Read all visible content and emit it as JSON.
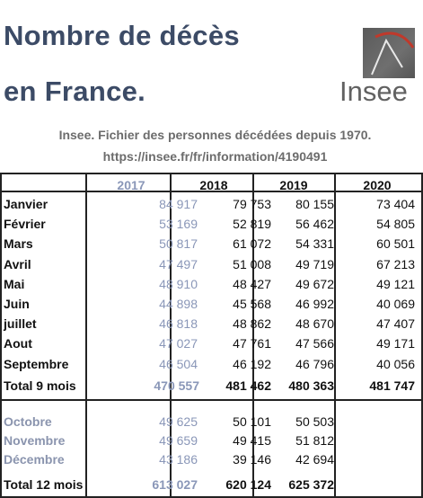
{
  "title": {
    "line1": "Nombre de décès",
    "line2": "en France."
  },
  "logo": {
    "text": "Insee"
  },
  "source": {
    "line1": "Insee. Fichier des personnes décédées depuis 1970.",
    "line2": "https://insee.fr/fr/information/4190491"
  },
  "colors": {
    "title": "#3c4b66",
    "muted": "#8a97b8",
    "logo_bg": "#5f5f5f",
    "logo_red": "#c0392b"
  },
  "table": {
    "headers": [
      "2017",
      "2018",
      "2019",
      "2020"
    ],
    "rows": [
      {
        "label": "Janvier",
        "v2017": "84 917",
        "v2018": "79 753",
        "v2019": "80 155",
        "v2020": "73 404"
      },
      {
        "label": "Février",
        "v2017": "53 169",
        "v2018": "52 819",
        "v2019": "56 462",
        "v2020": "54 805"
      },
      {
        "label": "Mars",
        "v2017": "50 817",
        "v2018": "61 072",
        "v2019": "54 331",
        "v2020": "60 501"
      },
      {
        "label": "Avril",
        "v2017": "47 497",
        "v2018": "51 008",
        "v2019": "49 719",
        "v2020": "67 213"
      },
      {
        "label": "Mai",
        "v2017": "48 910",
        "v2018": "48 427",
        "v2019": "49 672",
        "v2020": "49 121"
      },
      {
        "label": "Juin",
        "v2017": "44 898",
        "v2018": "45 568",
        "v2019": "46 992",
        "v2020": "40 069"
      },
      {
        "label": "juillet",
        "v2017": "46 818",
        "v2018": "48 862",
        "v2019": "48 670",
        "v2020": "47 407"
      },
      {
        "label": "Aout",
        "v2017": "47 027",
        "v2018": "47 761",
        "v2019": "47 566",
        "v2020": "49 171"
      },
      {
        "label": "Septembre",
        "v2017": "46 504",
        "v2018": "46 192",
        "v2019": "46 796",
        "v2020": "40 056"
      }
    ],
    "total9": {
      "label": "Total 9 mois",
      "v2017": "470 557",
      "v2018": "481 462",
      "v2019": "480 363",
      "v2020": "481 747"
    },
    "rows_late": [
      {
        "label": "Octobre",
        "v2017": "49 625",
        "v2018": "50 101",
        "v2019": "50 503"
      },
      {
        "label": "Novembre",
        "v2017": "49 659",
        "v2018": "49 415",
        "v2019": "51 812"
      },
      {
        "label": "Décembre",
        "v2017": "43 186",
        "v2018": "39 146",
        "v2019": "42 694"
      }
    ],
    "total12": {
      "label": "Total 12 mois",
      "v2017": "613 027",
      "v2018": "620 124",
      "v2019": "625 372"
    }
  }
}
